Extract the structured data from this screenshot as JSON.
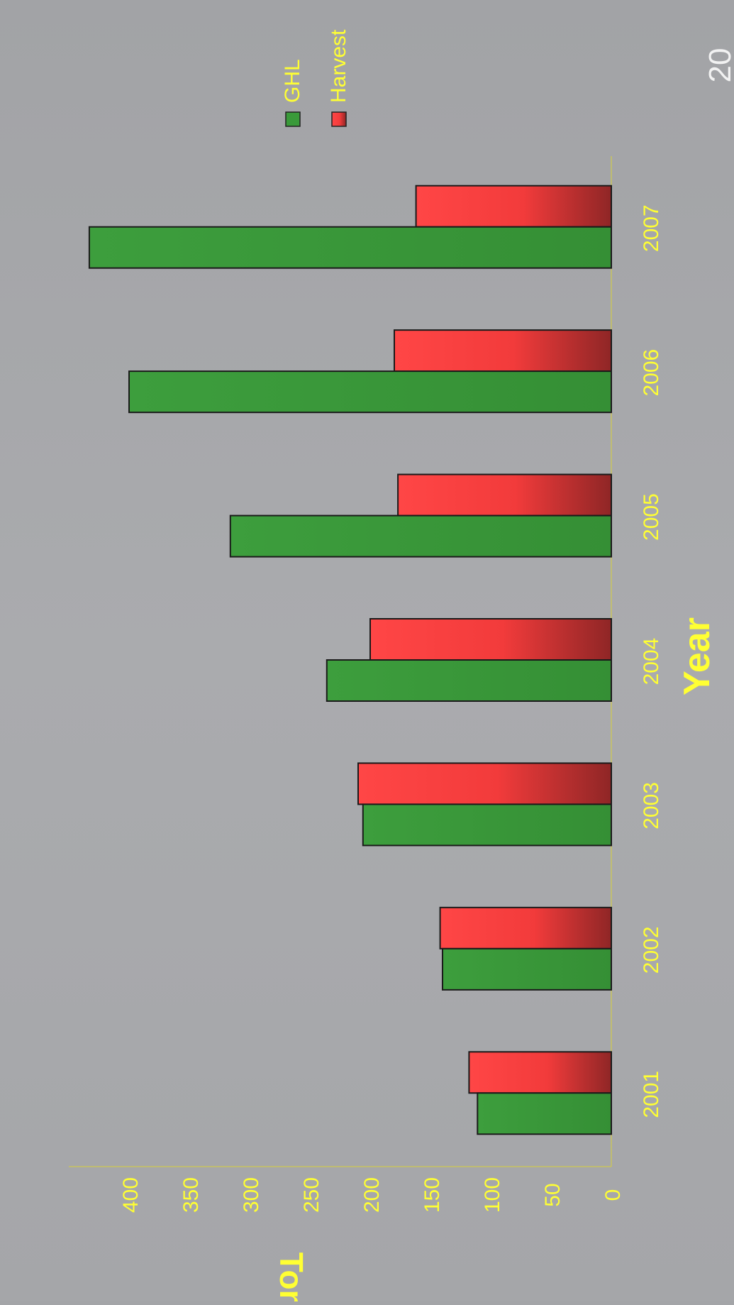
{
  "page_number": "20",
  "chart_data": {
    "type": "bar",
    "orientation": "rotated-90-ccw",
    "categories": [
      "2001",
      "2002",
      "2003",
      "2004",
      "2005",
      "2006",
      "2007"
    ],
    "series": [
      {
        "name": "GHL",
        "values": [
          111,
          140,
          206,
          236,
          316,
          400,
          433
        ],
        "color": "#3a9a3a"
      },
      {
        "name": "Harvest",
        "values": [
          118,
          142,
          210,
          200,
          177,
          180,
          162
        ],
        "color": "#ff4040"
      }
    ],
    "ylabel": "Tons",
    "xlabel": "Year",
    "yticks": [
      0,
      50,
      100,
      150,
      200,
      250,
      300,
      350,
      400
    ],
    "ylim": [
      0,
      450
    ],
    "legend_position": "top-right",
    "text_color": "#ffff33"
  }
}
